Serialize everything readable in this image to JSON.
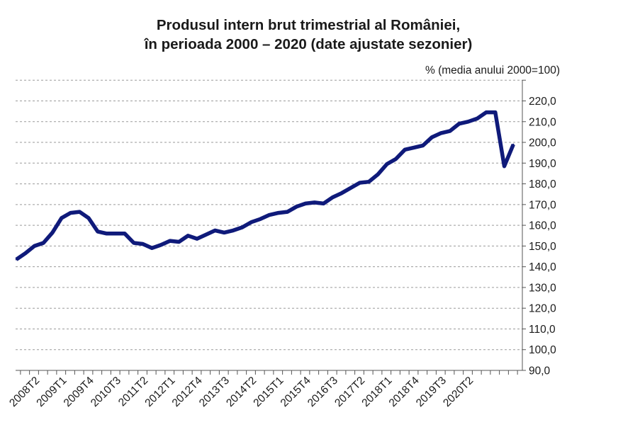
{
  "chart_data": {
    "type": "line",
    "title": "Produsul intern brut trimestrial al României,",
    "subtitle": "în perioada 2000 – 2020 (date ajustate sezonier)",
    "unit_label": "% (media anului 2000=100)",
    "ylim": [
      90,
      220
    ],
    "y_ticks": [
      "90,0",
      "100,0",
      "110,0",
      "120,0",
      "130,0",
      "140,0",
      "150,0",
      "160,0",
      "170,0",
      "180,0",
      "190,0",
      "200,0",
      "210,0",
      "220,0"
    ],
    "x_tick_labels": [
      {
        "label": "2008T2",
        "index": 2
      },
      {
        "label": "2009T1",
        "index": 5
      },
      {
        "label": "2009T4",
        "index": 8
      },
      {
        "label": "2010T3",
        "index": 11
      },
      {
        "label": "2011T2",
        "index": 14
      },
      {
        "label": "2012T1",
        "index": 17
      },
      {
        "label": "2012T4",
        "index": 20
      },
      {
        "label": "2013T3",
        "index": 23
      },
      {
        "label": "2014T2",
        "index": 26
      },
      {
        "label": "2015T1",
        "index": 29
      },
      {
        "label": "2015T4",
        "index": 32
      },
      {
        "label": "2016T3",
        "index": 35
      },
      {
        "label": "2017T2",
        "index": 38
      },
      {
        "label": "2018T1",
        "index": 41
      },
      {
        "label": "2018T4",
        "index": 44
      },
      {
        "label": "2019T3",
        "index": 47
      },
      {
        "label": "2020T2",
        "index": 50
      }
    ],
    "grid": true,
    "series": [
      {
        "color": "#0f1a7a",
        "values": [
          143.5,
          146.5,
          150.0,
          151.5,
          156.5,
          163.5,
          166.0,
          166.5,
          163.5,
          157.0,
          156.0,
          156.0,
          156.0,
          151.5,
          151.0,
          149.0,
          150.5,
          152.5,
          152.0,
          155.0,
          153.5,
          155.5,
          157.5,
          156.5,
          157.5,
          159.0,
          161.5,
          163.0,
          165.0,
          166.0,
          166.5,
          169.0,
          170.5,
          171.0,
          170.5,
          173.5,
          175.5,
          178.0,
          180.5,
          181.0,
          184.5,
          189.5,
          192.0,
          196.5,
          197.5,
          198.5,
          202.5,
          204.5,
          205.5,
          209.0,
          210.0,
          211.5,
          214.5,
          214.5,
          188.5,
          199.0
        ]
      }
    ]
  }
}
